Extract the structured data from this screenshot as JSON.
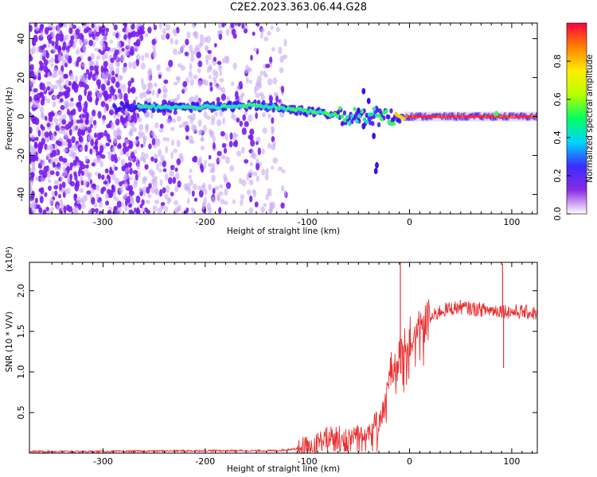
{
  "title": "C2E2.2023.363.06.44.G28",
  "colors": {
    "snr_line": "#e83030",
    "axis": "#000000"
  },
  "chart_data": [
    {
      "type": "heatmap",
      "xlabel": "Height of straight line (km)",
      "ylabel": "Frequency (Hz)",
      "xlim": [
        -372,
        125
      ],
      "ylim": [
        -50,
        48
      ],
      "x_ticks": [
        -300,
        -200,
        -100,
        0,
        100
      ],
      "x_tick_labels": [
        "-300",
        "-200",
        "-100",
        "0",
        "100"
      ],
      "y_ticks": [
        -40,
        -20,
        0,
        20,
        40
      ],
      "y_tick_labels": [
        "-40",
        "-20",
        "0",
        "20",
        "40"
      ],
      "colorbar": {
        "label": "Normalized spectral amplitude",
        "range": [
          0,
          1
        ],
        "ticks": [
          0.0,
          0.2,
          0.4,
          0.6,
          0.8
        ],
        "tick_labels": [
          "0.0",
          "0.2",
          "0.4",
          "0.6",
          "0.8"
        ],
        "colormap": [
          "#ffffff",
          "#8a2be2",
          "#3b2cff",
          "#00d5ff",
          "#00ff60",
          "#b8ff00",
          "#ffee00",
          "#ff8000",
          "#ff0040"
        ]
      },
      "ridge": [
        {
          "x": -290,
          "y": 5,
          "amp": 0.35
        },
        {
          "x": -260,
          "y": 5,
          "amp": 0.4
        },
        {
          "x": -220,
          "y": 5,
          "amp": 0.4
        },
        {
          "x": -180,
          "y": 5,
          "amp": 0.42
        },
        {
          "x": -150,
          "y": 6,
          "amp": 0.45
        },
        {
          "x": -120,
          "y": 4,
          "amp": 0.45
        },
        {
          "x": -90,
          "y": 2,
          "amp": 0.45
        },
        {
          "x": -60,
          "y": 0,
          "amp": 0.45
        },
        {
          "x": -40,
          "y": 0,
          "amp": 0.4
        },
        {
          "x": -20,
          "y": 0,
          "amp": 0.5
        },
        {
          "x": 0,
          "y": 0,
          "amp": 0.95
        },
        {
          "x": 125,
          "y": 0,
          "amp": 0.95
        }
      ]
    },
    {
      "type": "line",
      "xlabel": "Height of straight line (km)",
      "ylabel": "SNR (10 * V/V)",
      "y_multiplier": "(x10⁴)",
      "xlim": [
        -372,
        125
      ],
      "ylim": [
        0,
        2.35
      ],
      "x_ticks": [
        -300,
        -200,
        -100,
        0,
        100
      ],
      "x_tick_labels": [
        "-300",
        "-200",
        "-100",
        "0",
        "100"
      ],
      "y_ticks": [
        0.5,
        1.0,
        1.5,
        2.0
      ],
      "y_tick_labels": [
        "0.5",
        "1.0",
        "1.5",
        "2.0"
      ],
      "series": [
        {
          "x": [
            -372,
            -300,
            -200,
            -130,
            -100,
            -80,
            -60,
            -40,
            -30,
            -25,
            -20,
            -15,
            -10,
            -5,
            0,
            10,
            20,
            30,
            40,
            50,
            60,
            70,
            80,
            90,
            100,
            110,
            125
          ],
          "y": [
            0.02,
            0.02,
            0.03,
            0.03,
            0.07,
            0.2,
            0.22,
            0.3,
            0.4,
            0.55,
            0.9,
            1.1,
            1.2,
            1.25,
            1.4,
            1.55,
            1.65,
            1.75,
            1.78,
            1.8,
            1.78,
            1.77,
            1.76,
            1.76,
            1.74,
            1.74,
            1.72
          ]
        }
      ],
      "spikes": [
        {
          "x": -9,
          "y": 2.35
        },
        {
          "x": 91,
          "y": 2.33
        },
        {
          "x": 92,
          "y": 1.05
        }
      ]
    }
  ]
}
